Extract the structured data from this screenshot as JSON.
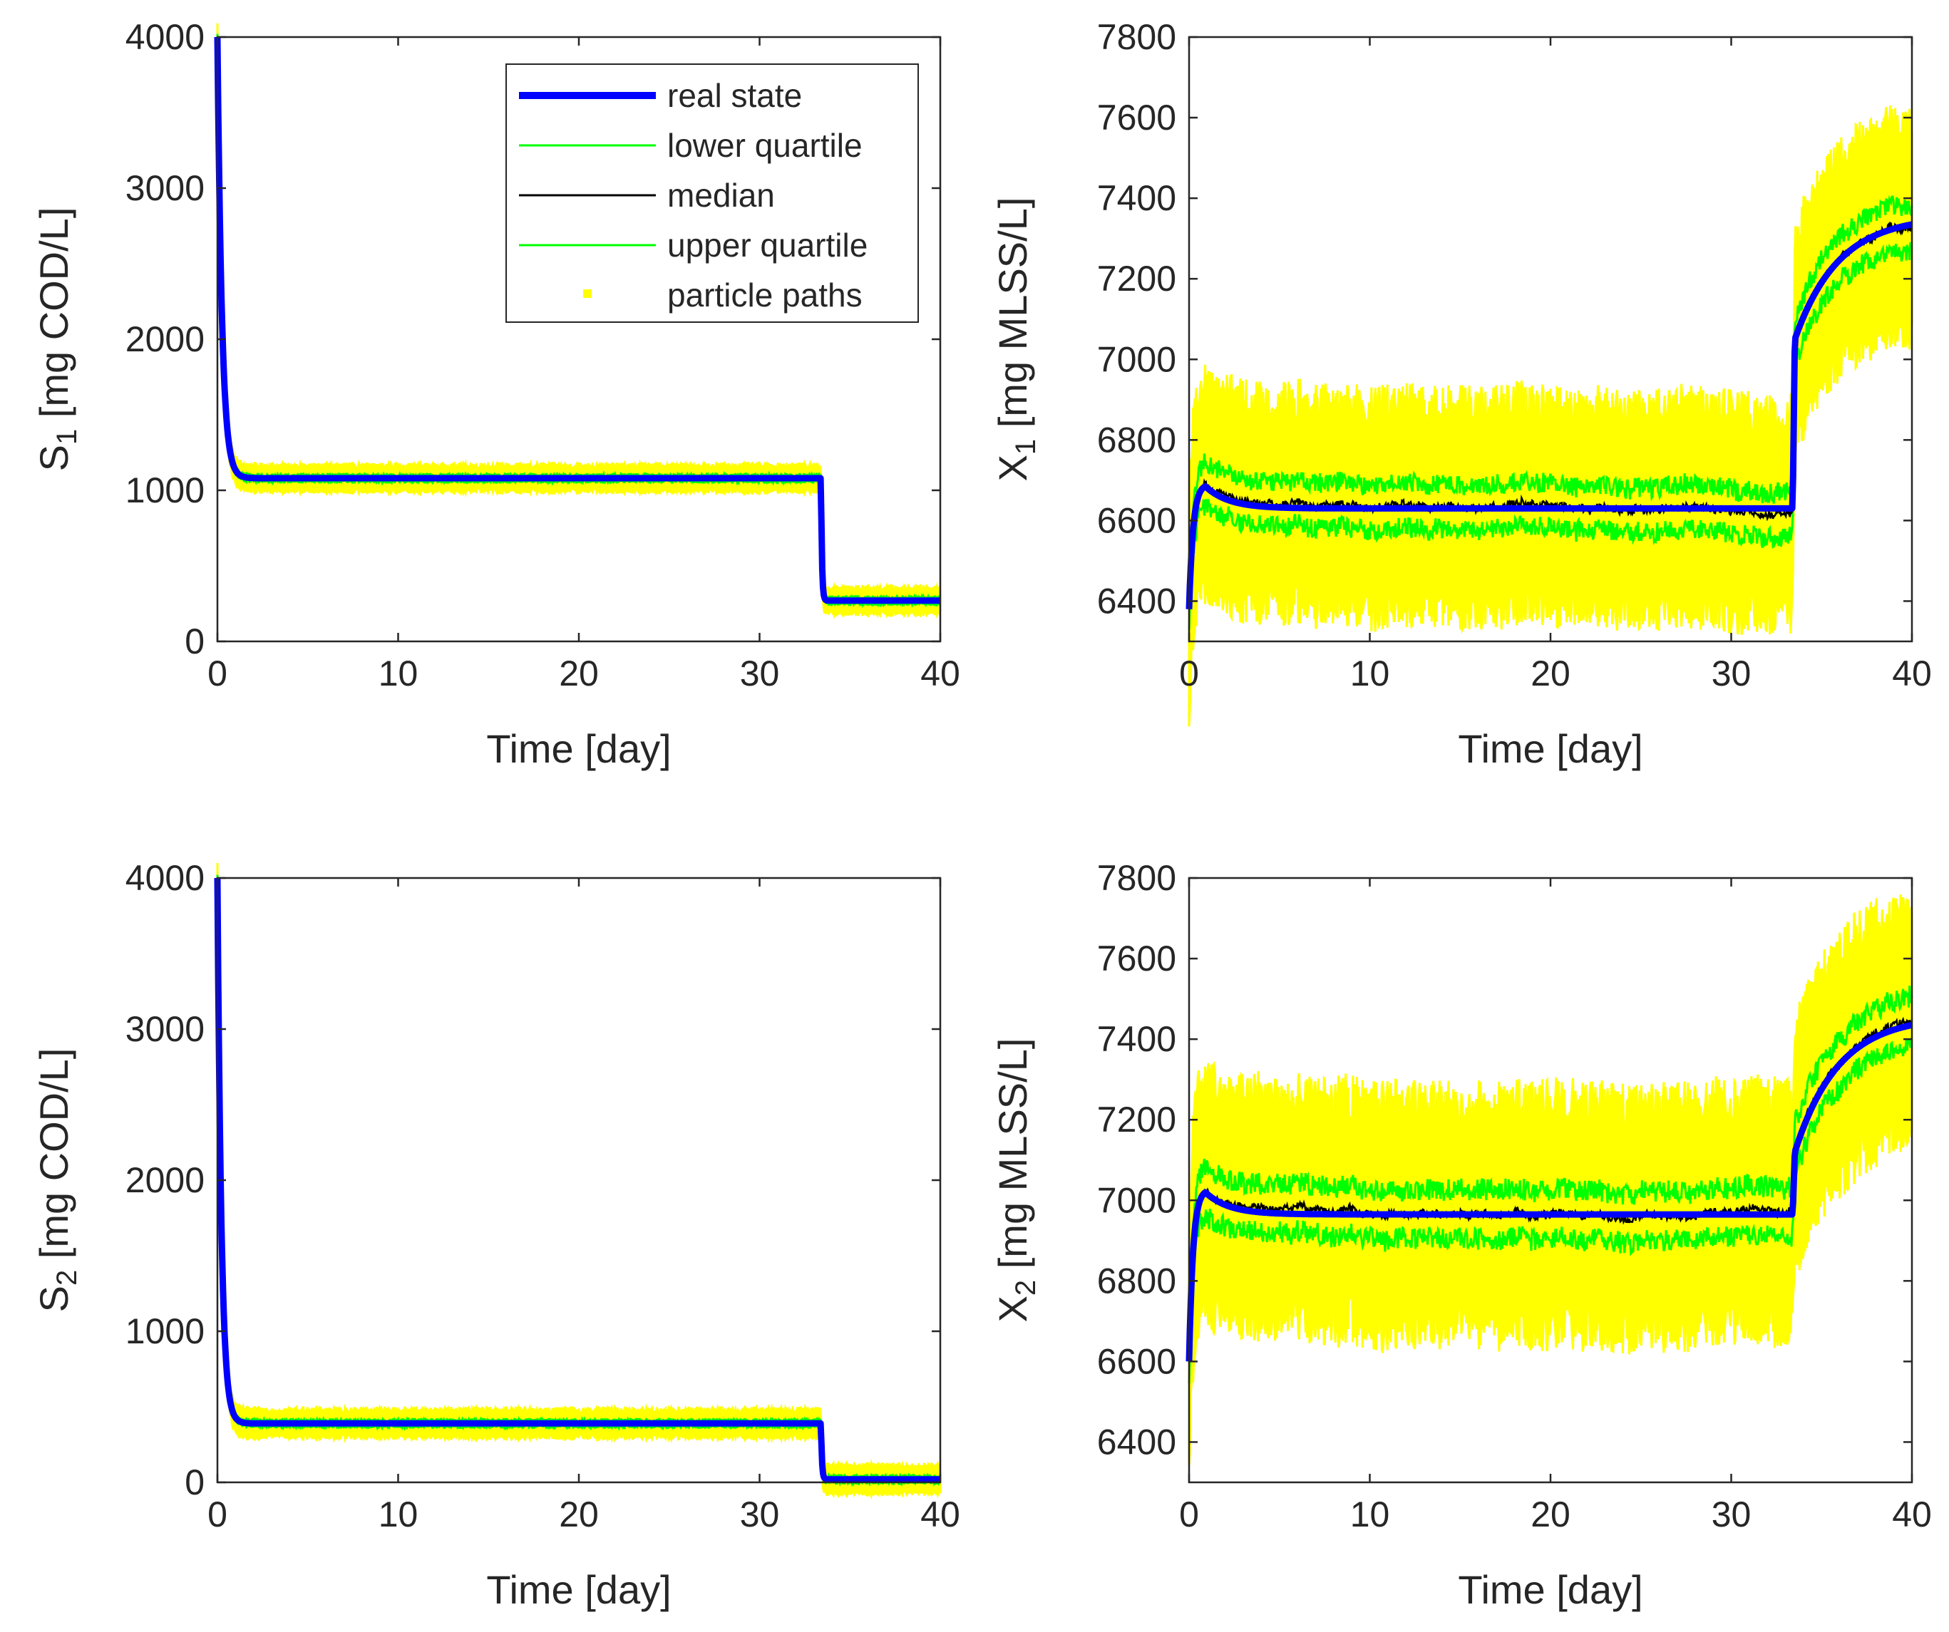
{
  "figure": {
    "legend": [
      {
        "label": "real state",
        "color": "#0000ff"
      },
      {
        "label": "lower quartile",
        "color": "#00ff00"
      },
      {
        "label": "median",
        "color": "#000000"
      },
      {
        "label": "upper quartile",
        "color": "#00ff00"
      },
      {
        "label": "particle paths",
        "color": "#ffff00"
      }
    ]
  },
  "chart_data": [
    {
      "id": "s1",
      "type": "line",
      "ylabel_main": "S",
      "ylabel_sub": "1",
      "ylabel_rest": " [mg COD/L]",
      "xlabel": "Time [day]",
      "xlim": [
        0,
        40
      ],
      "ylim": [
        0,
        4000
      ],
      "xticks": [
        0,
        10,
        20,
        30,
        40
      ],
      "yticks": [
        0,
        1000,
        2000,
        3000,
        4000
      ],
      "legend": true,
      "series": [
        {
          "name": "real state",
          "kind": "decay",
          "start": 4000,
          "level1": 1080,
          "t_step": 33.4,
          "level2": 270,
          "tau": 0.25
        },
        {
          "name": "particle paths",
          "band": 75
        },
        {
          "name": "lower quartile",
          "band": 20
        },
        {
          "name": "upper quartile",
          "band": 20
        },
        {
          "name": "median",
          "band": 5
        }
      ]
    },
    {
      "id": "x1",
      "type": "line",
      "ylabel_main": "X",
      "ylabel_sub": "1",
      "ylabel_rest": " [mg MLSS/L]",
      "xlabel": "Time [day]",
      "xlim": [
        0,
        40
      ],
      "ylim": [
        6300,
        7800
      ],
      "xticks": [
        0,
        10,
        20,
        30,
        40
      ],
      "yticks": [
        6400,
        6600,
        6800,
        7000,
        7200,
        7400,
        7600,
        7800
      ],
      "legend": false,
      "series": [
        {
          "name": "real state",
          "kind": "rise",
          "start": 6380,
          "peak": 6685,
          "plateau": 6630,
          "t_step": 33.4,
          "jump": 7050,
          "end": 7335
        },
        {
          "name": "particle paths",
          "band": 180
        },
        {
          "name": "lower quartile",
          "band": 55
        },
        {
          "name": "upper quartile",
          "band": 55
        },
        {
          "name": "median",
          "band": 30
        }
      ]
    },
    {
      "id": "s2",
      "type": "line",
      "ylabel_main": "S",
      "ylabel_sub": "2",
      "ylabel_rest": " [mg COD/L]",
      "xlabel": "Time [day]",
      "xlim": [
        0,
        40
      ],
      "ylim": [
        0,
        4000
      ],
      "xticks": [
        0,
        10,
        20,
        30,
        40
      ],
      "yticks": [
        0,
        1000,
        2000,
        3000,
        4000
      ],
      "legend": false,
      "series": [
        {
          "name": "real state",
          "kind": "decay",
          "start": 4000,
          "level1": 390,
          "t_step": 33.4,
          "level2": 20,
          "tau": 0.22
        },
        {
          "name": "particle paths",
          "band": 80
        },
        {
          "name": "lower quartile",
          "band": 20
        },
        {
          "name": "upper quartile",
          "band": 20
        },
        {
          "name": "median",
          "band": 5
        }
      ]
    },
    {
      "id": "x2",
      "type": "line",
      "ylabel_main": "X",
      "ylabel_sub": "2",
      "ylabel_rest": " [mg MLSS/L]",
      "xlabel": "Time [day]",
      "xlim": [
        0,
        40
      ],
      "ylim": [
        6300,
        7800
      ],
      "xticks": [
        0,
        10,
        20,
        30,
        40
      ],
      "yticks": [
        6400,
        6600,
        6800,
        7000,
        7200,
        7400,
        7600,
        7800
      ],
      "legend": false,
      "series": [
        {
          "name": "real state",
          "kind": "rise",
          "start": 6600,
          "peak": 7020,
          "plateau": 6965,
          "t_step": 33.4,
          "jump": 7120,
          "end": 7435
        },
        {
          "name": "particle paths",
          "band": 200
        },
        {
          "name": "lower quartile",
          "band": 60
        },
        {
          "name": "upper quartile",
          "band": 60
        },
        {
          "name": "median",
          "band": 30
        }
      ]
    }
  ]
}
